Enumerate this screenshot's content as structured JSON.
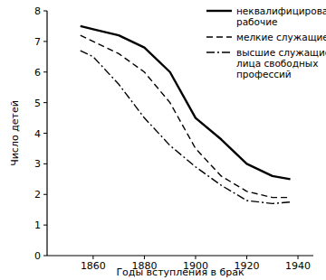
{
  "chart_data": {
    "type": "line",
    "x_label": "Годы вступления в брак",
    "y_label": "Число детей",
    "x": [
      1855,
      1860,
      1870,
      1880,
      1890,
      1900,
      1910,
      1920,
      1930,
      1937
    ],
    "series": [
      {
        "name": "неквалифицированные рабочие",
        "color": "#000000",
        "line_style": "solid",
        "values": [
          7.5,
          7.4,
          7.2,
          6.8,
          6.0,
          4.5,
          3.8,
          3.0,
          2.6,
          2.5
        ]
      },
      {
        "name": "мелкие служащие",
        "color": "#000000",
        "line_style": "dashed",
        "values": [
          7.2,
          7.0,
          6.6,
          6.0,
          5.0,
          3.5,
          2.6,
          2.1,
          1.9,
          1.9
        ]
      },
      {
        "name": "высшие служащие и лица свободных профессий",
        "color": "#000000",
        "line_style": "dashdot",
        "values": [
          6.7,
          6.5,
          5.6,
          4.5,
          3.6,
          2.9,
          2.3,
          1.8,
          1.7,
          1.75
        ]
      }
    ],
    "xlim": [
      1842,
      1946
    ],
    "ylim": [
      0,
      8
    ],
    "xticks": [
      1860,
      1880,
      1900,
      1920,
      1940
    ],
    "yticks": [
      0,
      1,
      2,
      3,
      4,
      5,
      6,
      7,
      8
    ],
    "grid": false,
    "legend": "upper right"
  }
}
